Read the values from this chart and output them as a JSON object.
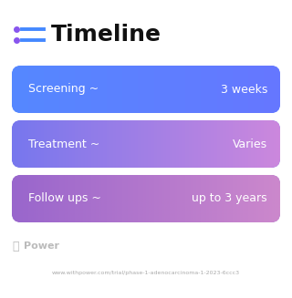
{
  "title": "Timeline",
  "title_fontsize": 18,
  "title_fontweight": "bold",
  "background_color": "#ffffff",
  "icon_dot_color": "#8855ee",
  "icon_line_color": "#4488ff",
  "rows": [
    {
      "label": "Screening ~",
      "value": "3 weeks",
      "color_left": "#5588ff",
      "color_right": "#6677ff"
    },
    {
      "label": "Treatment ~",
      "value": "Varies",
      "color_left": "#7777ee",
      "color_right": "#cc88dd"
    },
    {
      "label": "Follow ups ~",
      "value": "up to 3 years",
      "color_left": "#9966cc",
      "color_right": "#cc88cc"
    }
  ],
  "row_text_color": "#ffffff",
  "row_label_fontsize": 9,
  "row_value_fontsize": 9,
  "footer_logo_text": "Power",
  "footer_url": "www.withpower.com/trial/phase-1-adenocarcinoma-1-2023-6ccc3",
  "footer_fontsize": 4.5,
  "footer_color": "#aaaaaa",
  "footer_logo_fontsize": 8
}
